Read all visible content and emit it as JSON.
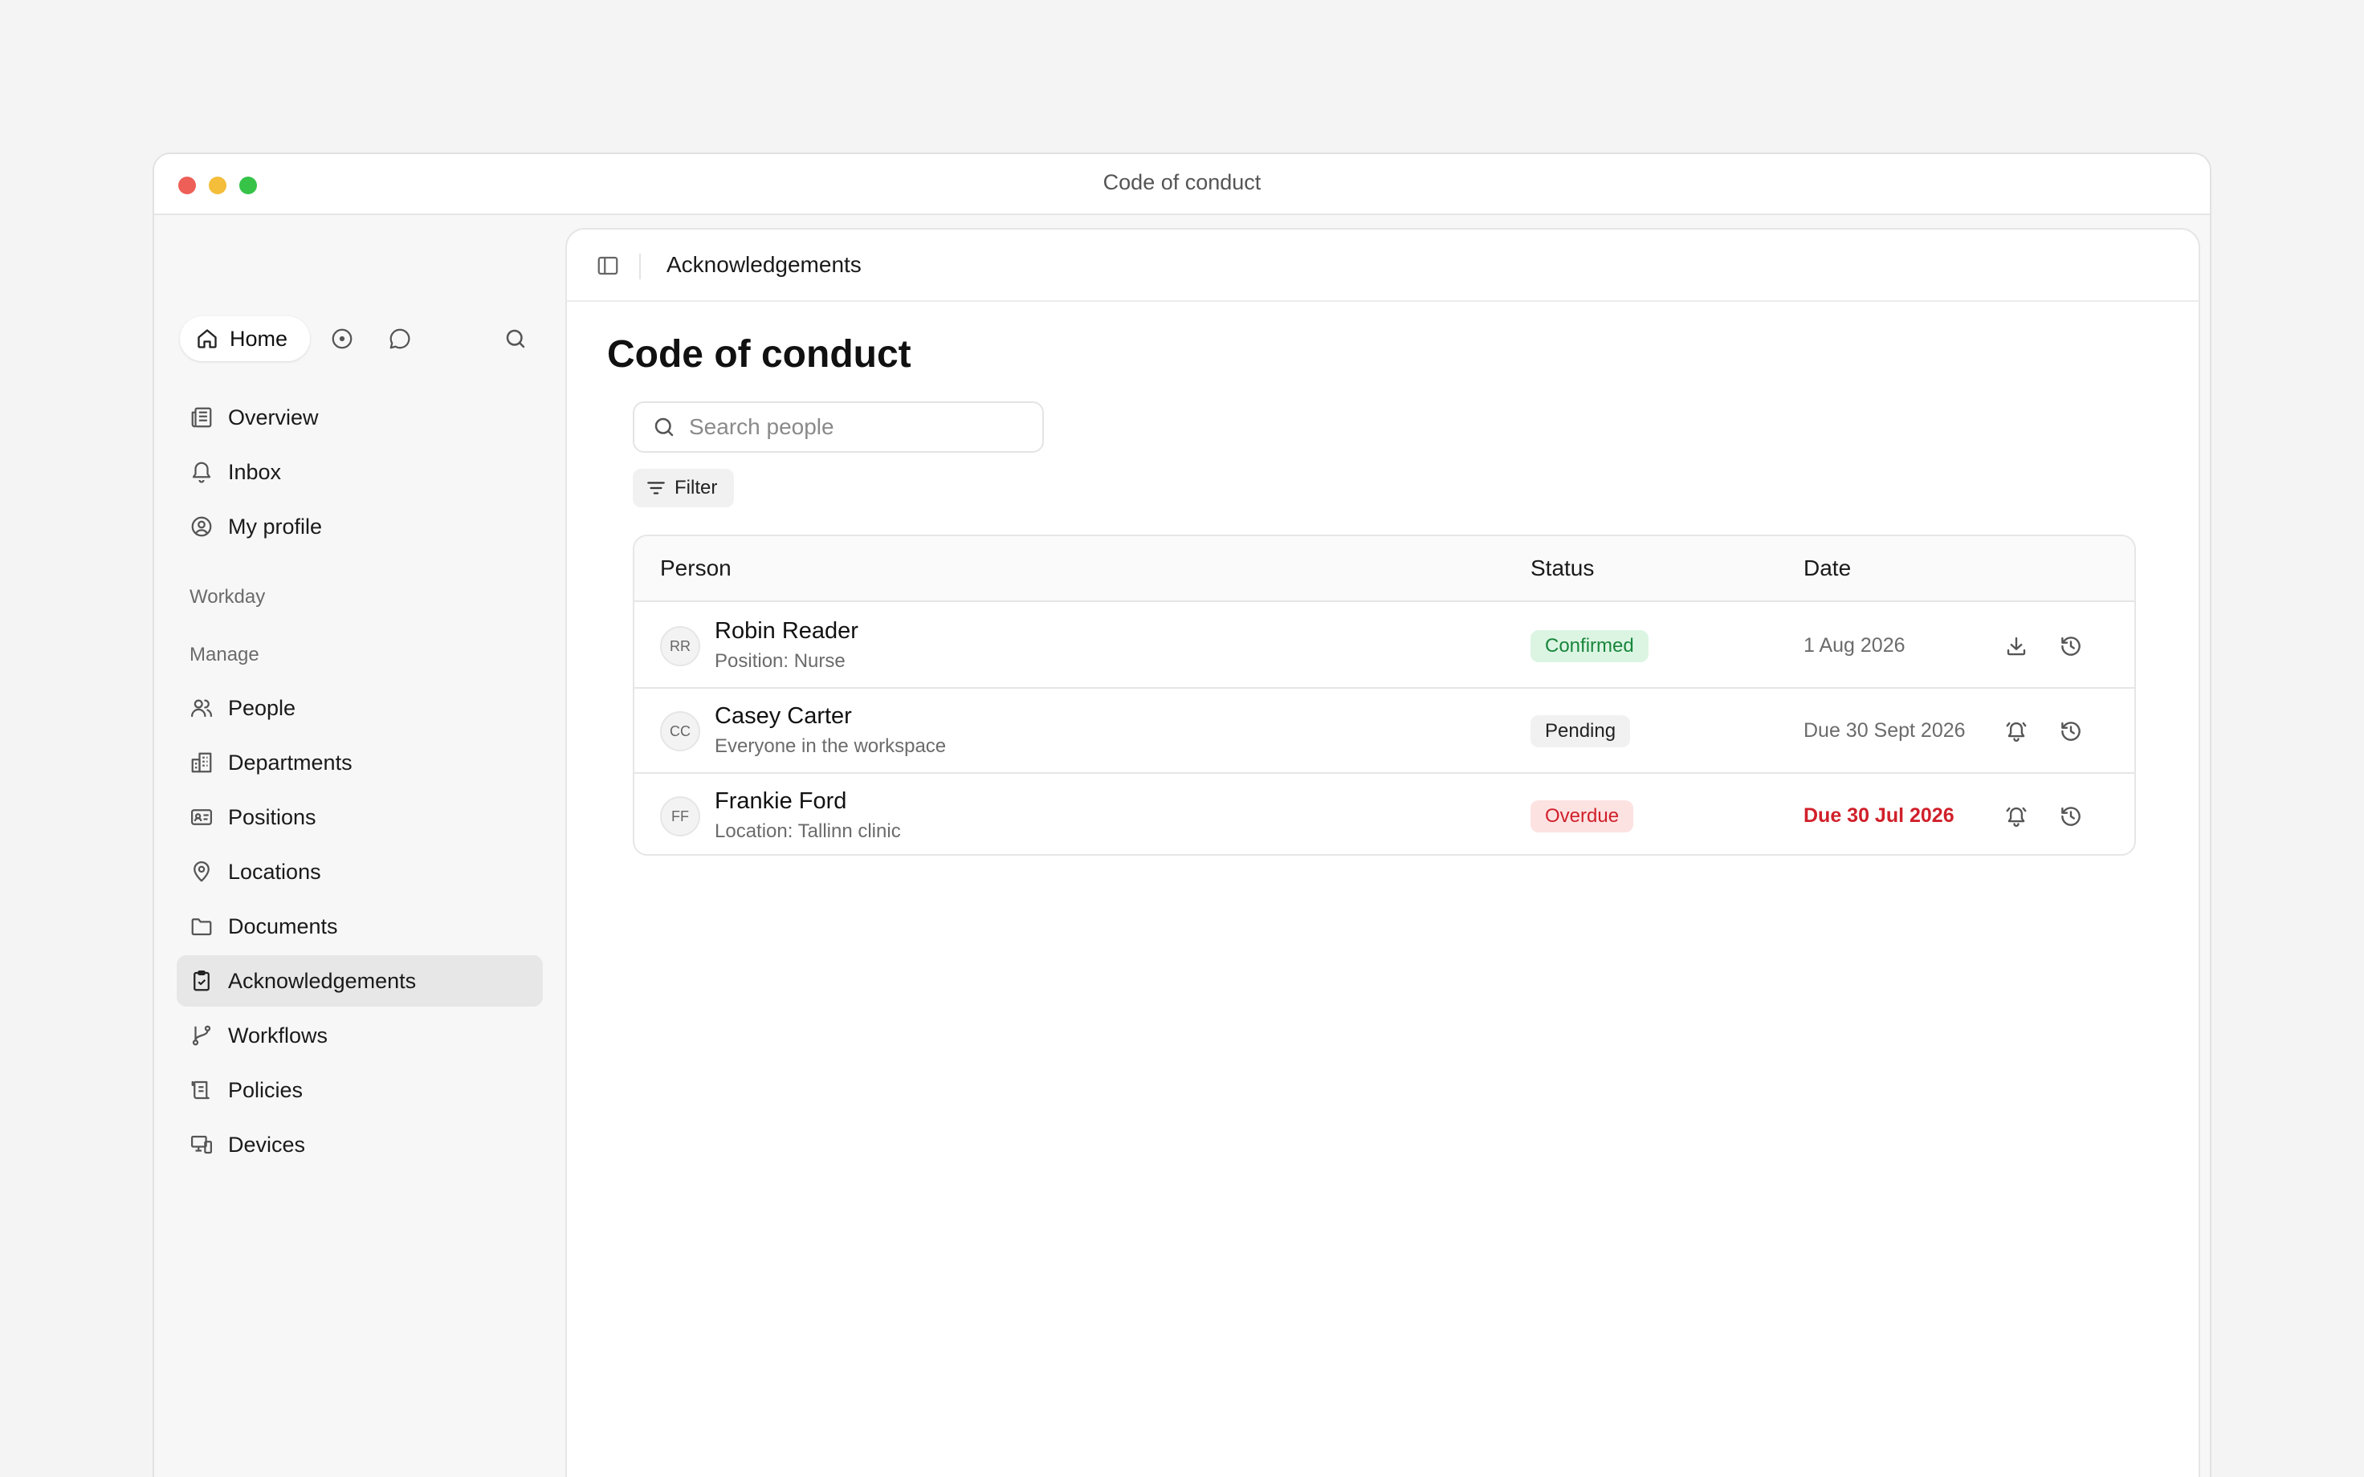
{
  "window": {
    "title": "Code of conduct"
  },
  "sidebar": {
    "home_label": "Home",
    "top_items": [
      {
        "label": "Overview",
        "icon": "newspaper-icon"
      },
      {
        "label": "Inbox",
        "icon": "bell-icon"
      },
      {
        "label": "My profile",
        "icon": "user-circle-icon"
      }
    ],
    "section_workday": "Workday",
    "section_manage": "Manage",
    "manage_items": [
      {
        "label": "People",
        "icon": "users-icon"
      },
      {
        "label": "Departments",
        "icon": "building-icon"
      },
      {
        "label": "Positions",
        "icon": "id-card-icon"
      },
      {
        "label": "Locations",
        "icon": "map-pin-icon"
      },
      {
        "label": "Documents",
        "icon": "folder-icon"
      },
      {
        "label": "Acknowledgements",
        "icon": "clipboard-check-icon",
        "active": true
      },
      {
        "label": "Workflows",
        "icon": "git-branch-icon"
      },
      {
        "label": "Policies",
        "icon": "scroll-icon"
      },
      {
        "label": "Devices",
        "icon": "devices-icon"
      }
    ]
  },
  "header": {
    "breadcrumb": "Acknowledgements"
  },
  "main": {
    "title": "Code of conduct",
    "search": {
      "placeholder": "Search people",
      "value": ""
    },
    "filter_label": "Filter",
    "table": {
      "columns": [
        "Person",
        "Status",
        "Date"
      ],
      "rows": [
        {
          "initials": "RR",
          "name": "Robin Reader",
          "sub": "Position: Nurse",
          "status": "Confirmed",
          "status_kind": "confirmed",
          "date": "1 Aug 2026",
          "actions": [
            "download-icon",
            "history-icon"
          ]
        },
        {
          "initials": "CC",
          "name": "Casey Carter",
          "sub": "Everyone in the workspace",
          "status": "Pending",
          "status_kind": "pending",
          "date": "Due 30 Sept 2026",
          "actions": [
            "bell-ring-icon",
            "history-icon"
          ]
        },
        {
          "initials": "FF",
          "name": "Frankie Ford",
          "sub": "Location: Tallinn clinic",
          "status": "Overdue",
          "status_kind": "overdue",
          "date": "Due 30 Jul 2026",
          "actions": [
            "bell-ring-icon",
            "history-icon"
          ]
        }
      ]
    }
  },
  "colors": {
    "confirmed_bg": "#dcf5e3",
    "confirmed_fg": "#18863c",
    "overdue_bg": "#fde2e2",
    "overdue_fg": "#d0202a",
    "active_nav_bg": "#e7e7e7"
  }
}
